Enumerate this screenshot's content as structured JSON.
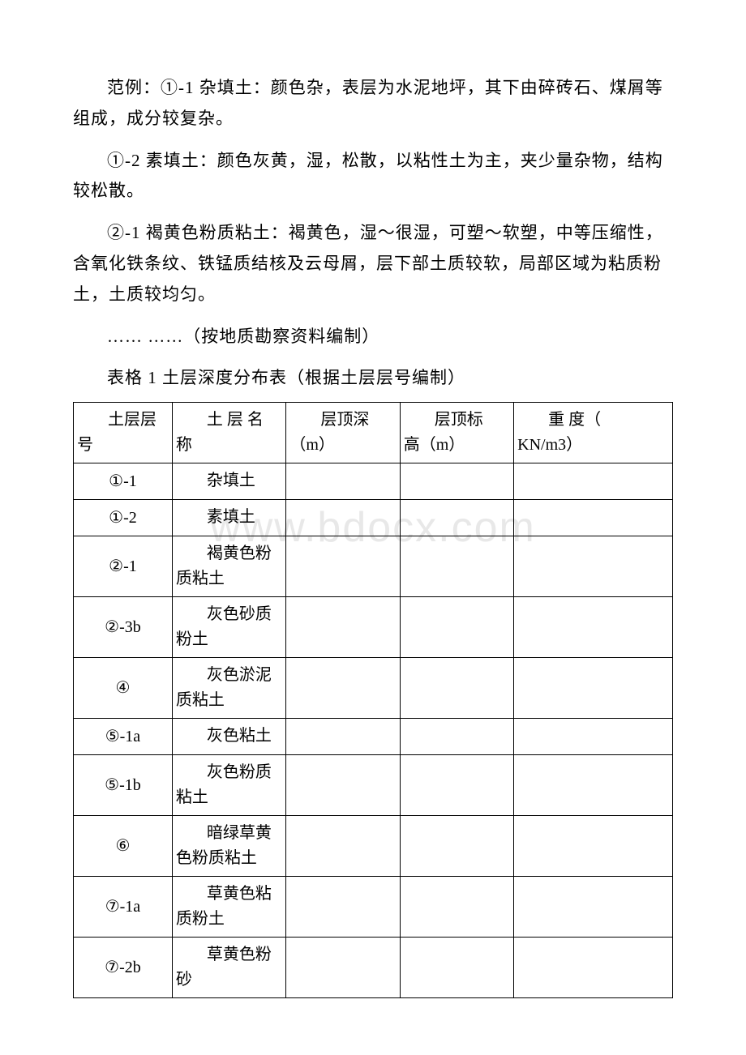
{
  "watermark": "www.bdocx.com",
  "paragraphs": {
    "p1": "范例：①-1 杂填土：颜色杂，表层为水泥地坪，其下由碎砖石、煤屑等组成，成分较复杂。",
    "p2": "①-2 素填土：颜色灰黄，湿，松散，以粘性土为主，夹少量杂物，结构较松散。",
    "p3": "②-1 褐黄色粉质粘土：褐黄色，湿～很湿，可塑～软塑，中等压缩性，含氧化铁条纹、铁锰质结核及云母屑，层下部土质较软，局部区域为粘质粉土，土质较均匀。",
    "p4": "…… ……（按地质勘察资料编制）"
  },
  "table_title": "表格 1 土层深度分布表（根据土层层号编制）",
  "table": {
    "columns": [
      {
        "label_line1": "土层层",
        "label_line2": "号"
      },
      {
        "label_line1": "土 层 名",
        "label_line2": "称"
      },
      {
        "label_line1": "层顶深",
        "label_line2": "（m）"
      },
      {
        "label_line1": "层顶标",
        "label_line2": "高（m）"
      },
      {
        "label_line1": "重 度（",
        "label_line2": "KN/m3）"
      }
    ],
    "rows": [
      {
        "id": "①-1",
        "name": "杂填土",
        "depth": "",
        "elevation": "",
        "weight": ""
      },
      {
        "id": "①-2",
        "name": "素填土",
        "depth": "",
        "elevation": "",
        "weight": ""
      },
      {
        "id": "②-1",
        "name": "褐黄色粉质粘土",
        "depth": "",
        "elevation": "",
        "weight": ""
      },
      {
        "id": "②-3b",
        "name": "灰色砂质粉土",
        "depth": "",
        "elevation": "",
        "weight": ""
      },
      {
        "id": "④",
        "name": "灰色淤泥质粘土",
        "depth": "",
        "elevation": "",
        "weight": ""
      },
      {
        "id": "⑤-1a",
        "name": "灰色粘土",
        "depth": "",
        "elevation": "",
        "weight": ""
      },
      {
        "id": "⑤-1b",
        "name": "灰色粉质粘土",
        "depth": "",
        "elevation": "",
        "weight": ""
      },
      {
        "id": "⑥",
        "name": "暗绿草黄色粉质粘土",
        "depth": "",
        "elevation": "",
        "weight": ""
      },
      {
        "id": "⑦-1a",
        "name": "草黄色粘质粉土",
        "depth": "",
        "elevation": "",
        "weight": ""
      },
      {
        "id": "⑦-2b",
        "name": "草黄色粉砂",
        "depth": "",
        "elevation": "",
        "weight": ""
      }
    ]
  },
  "colors": {
    "text": "#000000",
    "background": "#ffffff",
    "border": "#000000",
    "watermark": "#e8e8e8"
  },
  "typography": {
    "body_font": "SimSun",
    "body_fontsize": 21,
    "table_fontsize": 20,
    "watermark_fontsize": 52
  }
}
